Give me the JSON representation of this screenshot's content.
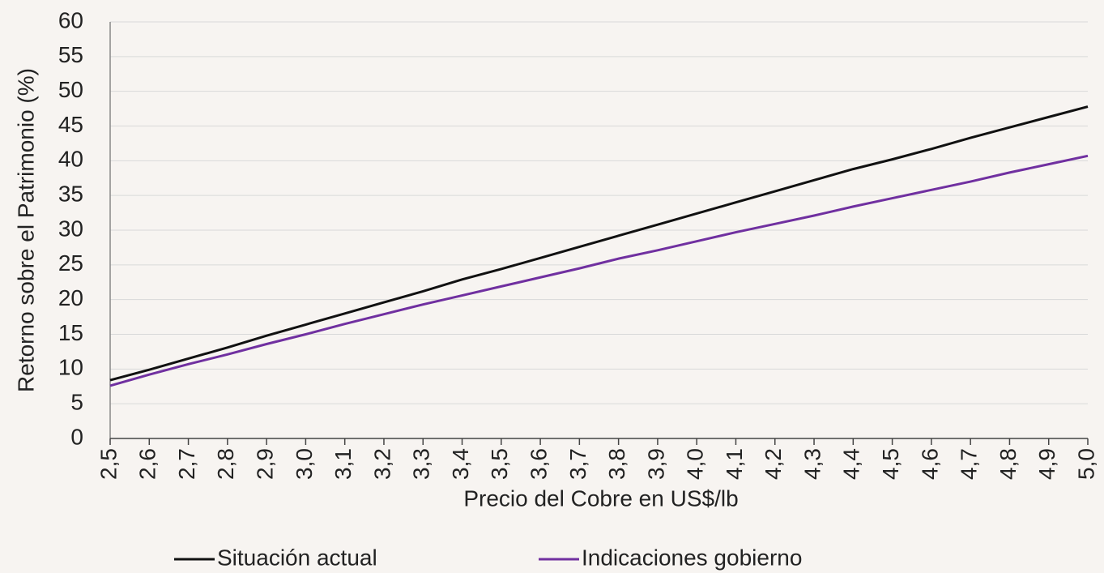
{
  "chart_data": {
    "type": "line",
    "x_label": "Precio del Cobre en US$/lb",
    "y_label": "Retorno sobre el Patrimonio (%)",
    "categories": [
      "2,5",
      "2,6",
      "2,7",
      "2,8",
      "2,9",
      "3,0",
      "3,1",
      "3,2",
      "3,3",
      "3,4",
      "3,5",
      "3,6",
      "3,7",
      "3,8",
      "3,9",
      "4,0",
      "4,1",
      "4,2",
      "4,3",
      "4,4",
      "4,5",
      "4,6",
      "4,7",
      "4,8",
      "4,9",
      "5,0"
    ],
    "series": [
      {
        "name": "Situación actual",
        "color": "#111111",
        "values": [
          8.4,
          9.9,
          11.5,
          13.1,
          14.8,
          16.4,
          18.0,
          19.6,
          21.2,
          22.9,
          24.4,
          26.0,
          27.6,
          29.2,
          30.8,
          32.4,
          34.0,
          35.6,
          37.2,
          38.8,
          40.2,
          41.7,
          43.3,
          44.8,
          46.3,
          47.8
        ]
      },
      {
        "name": "Indicaciones gobierno",
        "color": "#7030a0",
        "values": [
          7.6,
          9.2,
          10.7,
          12.1,
          13.6,
          15.0,
          16.5,
          17.9,
          19.3,
          20.6,
          21.9,
          23.2,
          24.5,
          25.9,
          27.1,
          28.4,
          29.7,
          30.9,
          32.1,
          33.4,
          34.6,
          35.8,
          37.0,
          38.3,
          39.5,
          40.7
        ]
      }
    ],
    "ylim": [
      0,
      60
    ],
    "yticks": [
      0,
      5,
      10,
      15,
      20,
      25,
      30,
      35,
      40,
      45,
      50,
      55,
      60
    ],
    "grid": true,
    "legend": "bottom"
  }
}
